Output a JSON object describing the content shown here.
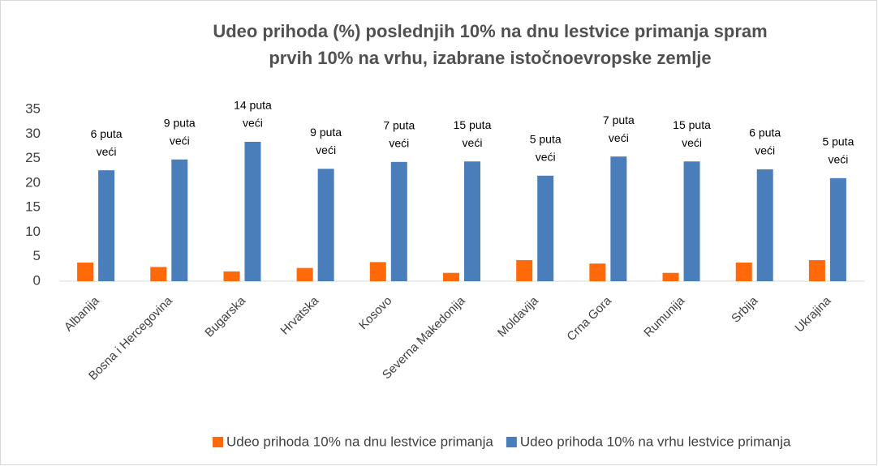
{
  "chart_data": {
    "type": "bar",
    "title": [
      "Udeo prihoda (%) poslednjih 10% na dnu lestvice primanja spram",
      "prvih 10% na vrhu, izabrane istočnoevropske zemlje"
    ],
    "categories": [
      "Albanija",
      "Bosna i Hercegovina",
      "Bugarska",
      "Hrvatska",
      "Kosovo",
      "Severna Makedonija",
      "Moldavija",
      "Crna Gora",
      "Rumunija",
      "Srbija",
      "Ukrajina"
    ],
    "series": [
      {
        "name": "Udeo prihoda 10% na dnu lestvice primanja",
        "color": "#fe6a0a",
        "values": [
          3.8,
          2.9,
          2.0,
          2.7,
          3.9,
          1.7,
          4.3,
          3.6,
          1.7,
          3.8,
          4.3
        ]
      },
      {
        "name": "Udeo prihoda 10% na vrhu lestvice primanja",
        "color": "#4a7ebb",
        "values": [
          22.6,
          24.8,
          28.4,
          22.9,
          24.3,
          24.4,
          21.5,
          25.4,
          24.4,
          22.8,
          21.0
        ]
      }
    ],
    "annotations": [
      [
        "6 puta",
        "veći"
      ],
      [
        "9 puta",
        "veći"
      ],
      [
        "14 puta",
        "veći"
      ],
      [
        "9 puta",
        "veći"
      ],
      [
        "7 puta",
        "veći"
      ],
      [
        "15 puta",
        "veći"
      ],
      [
        "5 puta",
        "veći"
      ],
      [
        "7 puta",
        "veći"
      ],
      [
        "15 puta",
        "veći"
      ],
      [
        "6 puta",
        "veći"
      ],
      [
        "5 puta",
        "veći"
      ]
    ],
    "ylim": [
      0,
      35
    ],
    "yticks": [
      0,
      5,
      10,
      15,
      20,
      25,
      30,
      35
    ],
    "grid": false,
    "legend": "bottom"
  }
}
